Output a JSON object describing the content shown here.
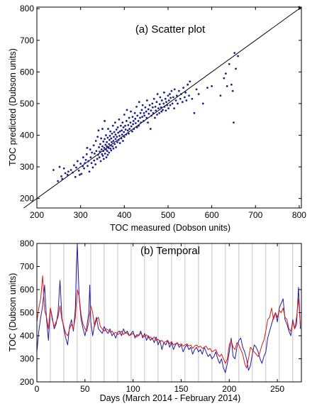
{
  "figure": {
    "background": "#ffffff"
  },
  "chart_data": [
    {
      "type": "scatter",
      "title": "(a) Scatter plot",
      "xlabel": "TOC measured (Dobson units)",
      "ylabel": "TOC predicted (Dubson units)",
      "xlim": [
        200,
        805
      ],
      "ylim": [
        170,
        805
      ],
      "xticks": [
        200,
        300,
        400,
        500,
        600,
        700,
        800
      ],
      "yticks": [
        200,
        300,
        400,
        500,
        600,
        700,
        800
      ],
      "xtick_labels": [
        "200",
        "300",
        "400",
        "500",
        "600",
        "700",
        "800"
      ],
      "ytick_labels": [
        "200",
        "300",
        "400",
        "500",
        "600",
        "700",
        "800"
      ],
      "grid": false,
      "reference_line": {
        "x": [
          170,
          805
        ],
        "y": [
          170,
          805
        ],
        "color": "#000000"
      },
      "series": [
        {
          "color": "#1f1f8a",
          "x": [
            238,
            248,
            252,
            256,
            258,
            262,
            265,
            270,
            272,
            278,
            282,
            285,
            288,
            290,
            293,
            296,
            298,
            300,
            302,
            305,
            306,
            308,
            310,
            312,
            314,
            315,
            316,
            318,
            320,
            322,
            323,
            325,
            326,
            328,
            330,
            331,
            332,
            334,
            335,
            336,
            338,
            339,
            340,
            341,
            342,
            343,
            344,
            345,
            346,
            347,
            348,
            349,
            350,
            350,
            351,
            352,
            352,
            353,
            354,
            355,
            355,
            356,
            357,
            358,
            358,
            359,
            360,
            360,
            361,
            362,
            362,
            363,
            364,
            365,
            365,
            366,
            367,
            368,
            368,
            369,
            370,
            370,
            371,
            372,
            373,
            374,
            375,
            375,
            376,
            377,
            378,
            379,
            380,
            380,
            381,
            382,
            383,
            384,
            385,
            386,
            387,
            388,
            389,
            390,
            390,
            392,
            393,
            394,
            395,
            396,
            397,
            398,
            399,
            400,
            400,
            402,
            403,
            404,
            405,
            406,
            408,
            409,
            410,
            411,
            412,
            414,
            415,
            416,
            418,
            419,
            420,
            421,
            422,
            424,
            425,
            426,
            428,
            429,
            430,
            432,
            433,
            434,
            436,
            437,
            438,
            440,
            441,
            442,
            444,
            445,
            446,
            448,
            450,
            451,
            452,
            454,
            455,
            456,
            458,
            460,
            461,
            462,
            464,
            465,
            466,
            468,
            470,
            471,
            472,
            474,
            475,
            476,
            478,
            480,
            481,
            482,
            484,
            485,
            486,
            488,
            490,
            491,
            492,
            494,
            495,
            496,
            498,
            500,
            501,
            502,
            504,
            505,
            506,
            508,
            510,
            512,
            514,
            515,
            518,
            520,
            522,
            525,
            528,
            530,
            533,
            535,
            538,
            540,
            542,
            545,
            548,
            550,
            555,
            560,
            565,
            570,
            580,
            590,
            600,
            620,
            628,
            632,
            635,
            640,
            645,
            648,
            650,
            652,
            655,
            660,
            800
          ],
          "y": [
            290,
            255,
            300,
            270,
            262,
            295,
            280,
            275,
            285,
            290,
            282,
            305,
            268,
            298,
            318,
            288,
            275,
            310,
            278,
            302,
            330,
            295,
            312,
            322,
            340,
            360,
            303,
            318,
            285,
            355,
            330,
            312,
            345,
            298,
            368,
            320,
            342,
            308,
            382,
            350,
            325,
            395,
            338,
            415,
            362,
            330,
            348,
            372,
            318,
            390,
            355,
            340,
            365,
            420,
            335,
            380,
            350,
            325,
            360,
            445,
            388,
            342,
            370,
            355,
            400,
            330,
            365,
            378,
            350,
            392,
            338,
            420,
            360,
            372,
            345,
            385,
            398,
            358,
            412,
            368,
            352,
            390,
            378,
            405,
            365,
            430,
            382,
            358,
            395,
            410,
            372,
            440,
            388,
            402,
            362,
            418,
            395,
            378,
            425,
            408,
            385,
            450,
            398,
            375,
            412,
            430,
            390,
            415,
            402,
            440,
            382,
            425,
            410,
            395,
            465,
            430,
            418,
            402,
            445,
            480,
            415,
            432,
            405,
            455,
            420,
            440,
            475,
            428,
            412,
            458,
            435,
            445,
            420,
            470,
            452,
            438,
            490,
            425,
            462,
            445,
            430,
            505,
            455,
            470,
            440,
            480,
            458,
            495,
            445,
            470,
            462,
            488,
            475,
            455,
            510,
            440,
            482,
            468,
            495,
            420,
            478,
            462,
            500,
            488,
            470,
            515,
            455,
            490,
            478,
            505,
            465,
            530,
            485,
            470,
            498,
            520,
            488,
            475,
            510,
            480,
            500,
            535,
            490,
            515,
            478,
            505,
            495,
            525,
            485,
            510,
            530,
            495,
            518,
            540,
            500,
            520,
            485,
            545,
            510,
            525,
            500,
            540,
            515,
            530,
            505,
            550,
            520,
            535,
            510,
            560,
            525,
            570,
            515,
            470,
            545,
            530,
            500,
            550,
            555,
            525,
            580,
            595,
            555,
            625,
            560,
            540,
            440,
            660,
            610,
            650,
            805
          ]
        }
      ]
    },
    {
      "type": "line",
      "title": "(b) Temporal",
      "xlabel": "Days (March 2014 - February 2014)",
      "ylabel": "TOC (Dubson units)",
      "xlim": [
        0,
        275
      ],
      "ylim": [
        200,
        800
      ],
      "xticks": [
        0,
        50,
        100,
        150,
        200,
        250
      ],
      "yticks": [
        200,
        300,
        400,
        500,
        600,
        700,
        800
      ],
      "xtick_labels": [
        "0",
        "50",
        "100",
        "150",
        "200",
        "250"
      ],
      "ytick_labels": [
        "200",
        "300",
        "400",
        "500",
        "600",
        "700",
        "800"
      ],
      "grid": "vertical lines every 14 days",
      "gridlines_x": [
        14,
        28,
        42,
        56,
        70,
        84,
        98,
        112,
        126,
        140,
        154,
        168,
        182,
        196,
        210,
        224,
        238,
        252,
        266
      ],
      "gridline_color": "#b4b4b4",
      "series": [
        {
          "color": "#1f1f9c",
          "x": [
            0,
            2,
            4,
            6,
            8,
            10,
            12,
            14,
            16,
            18,
            20,
            22,
            24,
            26,
            28,
            30,
            32,
            34,
            36,
            38,
            40,
            41,
            42,
            44,
            46,
            48,
            50,
            52,
            54,
            55,
            56,
            58,
            60,
            62,
            64,
            66,
            68,
            70,
            72,
            74,
            76,
            78,
            80,
            82,
            84,
            86,
            88,
            90,
            92,
            94,
            96,
            98,
            100,
            102,
            104,
            106,
            108,
            110,
            112,
            114,
            116,
            118,
            120,
            122,
            124,
            126,
            128,
            130,
            132,
            134,
            136,
            138,
            140,
            142,
            144,
            146,
            148,
            150,
            152,
            154,
            156,
            158,
            160,
            162,
            164,
            166,
            168,
            170,
            172,
            174,
            176,
            178,
            180,
            182,
            184,
            186,
            188,
            190,
            192,
            194,
            196,
            198,
            200,
            202,
            204,
            206,
            208,
            210,
            212,
            214,
            216,
            218,
            220,
            222,
            224,
            226,
            228,
            230,
            232,
            234,
            236,
            238,
            240,
            242,
            244,
            246,
            248,
            250,
            252,
            254,
            256,
            258,
            260,
            262,
            264,
            266,
            268,
            270,
            272,
            274
          ],
          "y": [
            330,
            420,
            480,
            530,
            620,
            470,
            380,
            520,
            480,
            430,
            450,
            500,
            640,
            480,
            430,
            390,
            360,
            440,
            470,
            420,
            520,
            690,
            800,
            560,
            470,
            430,
            400,
            440,
            500,
            620,
            460,
            400,
            450,
            480,
            430,
            420,
            410,
            440,
            420,
            410,
            430,
            400,
            410,
            390,
            415,
            420,
            400,
            430,
            410,
            420,
            400,
            410,
            420,
            390,
            405,
            400,
            420,
            390,
            410,
            380,
            400,
            380,
            390,
            370,
            395,
            360,
            380,
            340,
            370,
            360,
            380,
            350,
            370,
            340,
            360,
            370,
            350,
            360,
            330,
            350,
            360,
            340,
            350,
            320,
            340,
            350,
            330,
            340,
            320,
            350,
            330,
            310,
            320,
            300,
            310,
            330,
            300,
            280,
            300,
            260,
            240,
            280,
            330,
            390,
            310,
            300,
            350,
            380,
            390,
            350,
            330,
            300,
            250,
            270,
            320,
            360,
            350,
            330,
            300,
            280,
            310,
            330,
            390,
            420,
            450,
            480,
            500,
            460,
            520,
            540,
            560,
            470,
            450,
            420,
            400,
            470,
            430,
            450,
            610,
            430
          ]
        },
        {
          "color": "#e01818",
          "x": [
            0,
            2,
            4,
            6,
            8,
            10,
            12,
            14,
            16,
            18,
            20,
            22,
            24,
            26,
            28,
            30,
            32,
            34,
            36,
            38,
            40,
            42,
            44,
            46,
            48,
            50,
            52,
            54,
            56,
            58,
            60,
            62,
            64,
            66,
            68,
            70,
            72,
            74,
            76,
            78,
            80,
            82,
            84,
            86,
            88,
            90,
            92,
            94,
            96,
            98,
            100,
            102,
            104,
            106,
            108,
            110,
            112,
            114,
            116,
            118,
            120,
            122,
            124,
            126,
            128,
            130,
            132,
            134,
            136,
            138,
            140,
            142,
            144,
            146,
            148,
            150,
            152,
            154,
            156,
            158,
            160,
            162,
            164,
            166,
            168,
            170,
            172,
            174,
            176,
            178,
            180,
            182,
            184,
            186,
            188,
            190,
            192,
            194,
            196,
            198,
            200,
            202,
            204,
            206,
            208,
            210,
            212,
            214,
            216,
            218,
            220,
            222,
            224,
            226,
            228,
            230,
            232,
            234,
            236,
            238,
            240,
            242,
            244,
            246,
            248,
            250,
            252,
            254,
            256,
            258,
            260,
            262,
            264,
            266,
            268,
            270,
            272,
            274
          ],
          "y": [
            460,
            520,
            560,
            660,
            510,
            480,
            430,
            520,
            470,
            440,
            460,
            480,
            530,
            470,
            440,
            410,
            400,
            430,
            450,
            430,
            480,
            600,
            570,
            490,
            450,
            430,
            420,
            460,
            530,
            500,
            440,
            470,
            480,
            440,
            430,
            420,
            430,
            425,
            415,
            420,
            410,
            415,
            405,
            410,
            420,
            405,
            415,
            410,
            400,
            405,
            410,
            400,
            395,
            405,
            410,
            400,
            395,
            405,
            390,
            395,
            385,
            395,
            380,
            385,
            375,
            380,
            370,
            375,
            380,
            365,
            375,
            360,
            365,
            370,
            360,
            365,
            355,
            360,
            365,
            355,
            360,
            345,
            355,
            360,
            350,
            355,
            345,
            350,
            355,
            340,
            345,
            330,
            335,
            340,
            320,
            310,
            320,
            300,
            280,
            300,
            360,
            380,
            350,
            340,
            370,
            360,
            340,
            320,
            280,
            260,
            300,
            350,
            340,
            330,
            320,
            310,
            330,
            360,
            380,
            420,
            470,
            480,
            520,
            470,
            500,
            480,
            510,
            500,
            520,
            480,
            470,
            430,
            420,
            460,
            430,
            480,
            560,
            450
          ]
        }
      ]
    }
  ]
}
